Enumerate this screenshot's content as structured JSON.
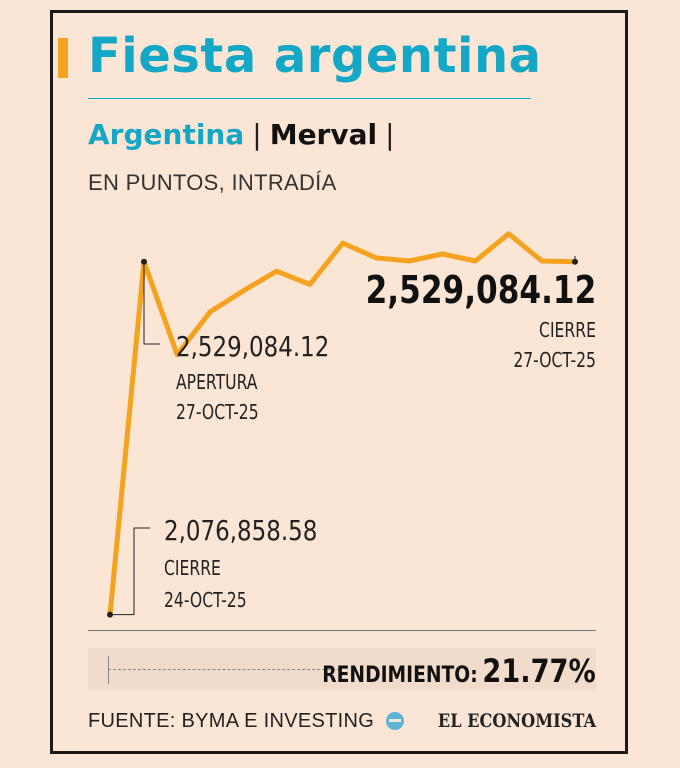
{
  "header": {
    "title": "Fiesta argentina",
    "country": "Argentina",
    "index": "Merval",
    "units": "EN PUNTOS, INTRADÍA"
  },
  "colors": {
    "accent": "#f5a31e",
    "brand": "#14a7c6",
    "background": "#fbe6d6"
  },
  "annotations": {
    "open_value": "2,529,084.12",
    "open_label": "APERTURA",
    "open_date": "27-OCT-25",
    "prev_close_value": "2,076,858.58",
    "prev_close_label": "CIERRE",
    "prev_close_date": "24-OCT-25",
    "close_value": "2,529,084.12",
    "close_label": "CIERRE",
    "close_date": "27-OCT-25"
  },
  "performance": {
    "label": "RENDIMIENTO:",
    "value": "21.77%"
  },
  "footer": {
    "source": "FUENTE: BYMA E INVESTING",
    "brand": "EL ECONOMISTA",
    "brand_icon": "globe-icon"
  },
  "chart_data": {
    "type": "line",
    "series": [
      {
        "values": [
          2076858.58,
          2529084.12,
          2410000,
          2465000,
          2492000,
          2517000,
          2500000,
          2553000,
          2534000,
          2530000,
          2539000,
          2530000,
          2565000,
          2530000,
          2529084.12
        ]
      }
    ],
    "ylim": [
      2070000,
      2580000
    ],
    "grid": false
  }
}
